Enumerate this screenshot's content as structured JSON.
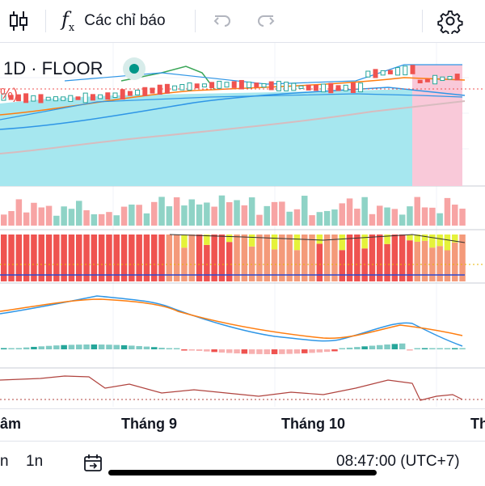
{
  "toolbar": {
    "indicators_label": "Các chỉ báo",
    "icons": [
      "candlestick-icon",
      "function-fx-icon",
      "undo-icon",
      "redo-icon",
      "gear-icon"
    ]
  },
  "chart": {
    "symbol_label": "1D · FLOOR",
    "percent_fragment": "%)",
    "colors": {
      "up": "#26a69a",
      "down": "#ef5350",
      "volume_up": "#8fd3c6",
      "volume_down": "#f7a4a4",
      "cloud": "#a6e7ef",
      "highlight": "#f9c9d9",
      "macd": "#2f96e6",
      "signal": "#ff7d0f",
      "rsi": "#b0433e"
    }
  },
  "xaxis": {
    "labels": [
      "âm",
      "Tháng 9",
      "Tháng 10",
      "Th"
    ]
  },
  "bottom": {
    "interval_a": "n",
    "interval_b": "1n",
    "time": "08:47:00 (UTC+7)"
  }
}
